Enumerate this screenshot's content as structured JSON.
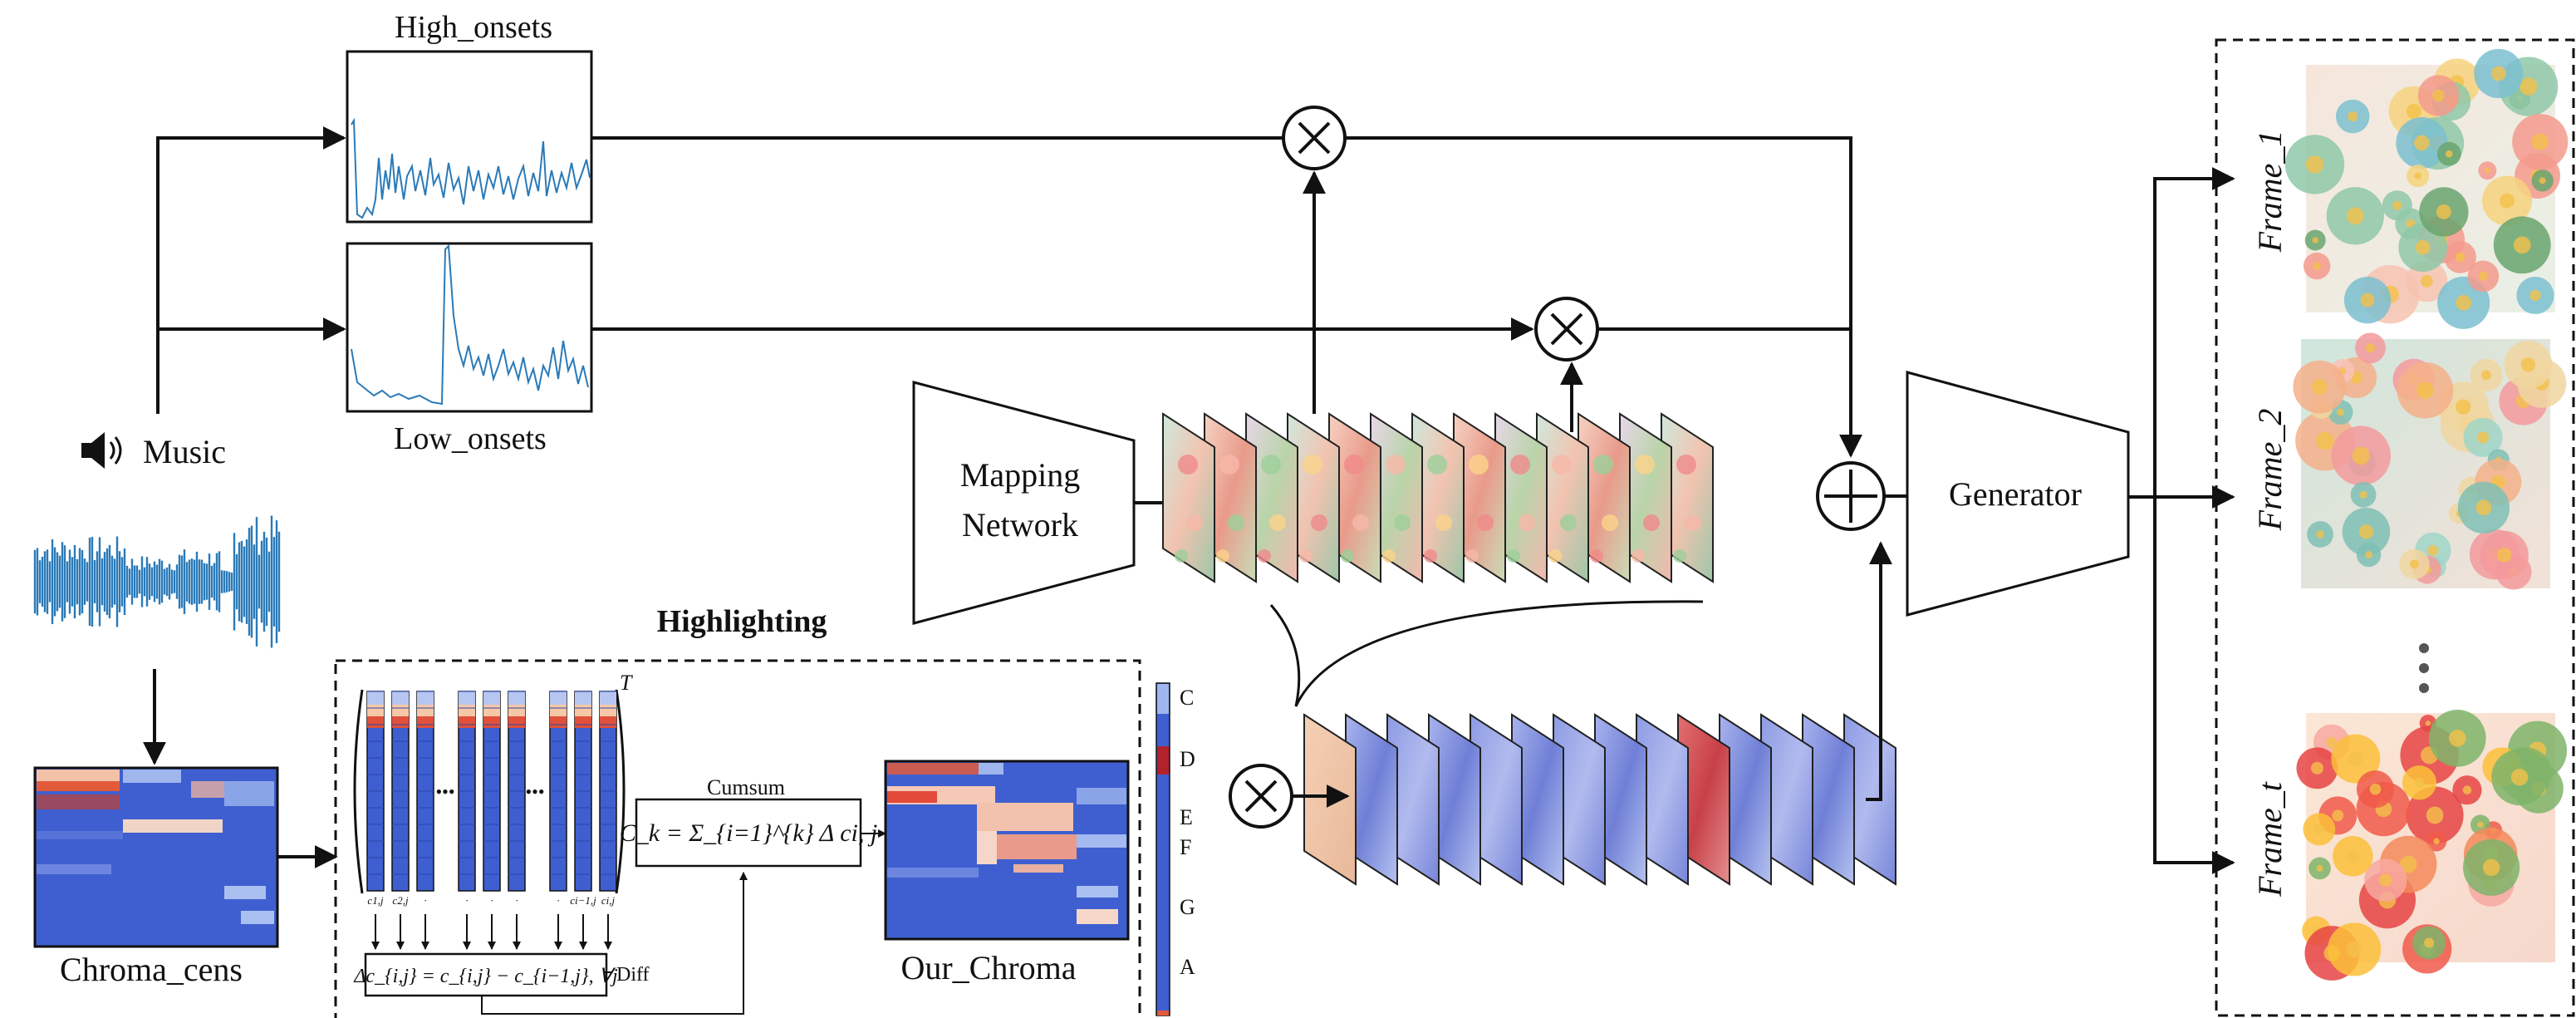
{
  "labels": {
    "high_onsets": "High_onsets",
    "low_onsets": "Low_onsets",
    "music": "Music",
    "chroma_cens": "Chroma_cens",
    "highlighting": "Highlighting",
    "our_chroma": "Our_Chroma",
    "mapping_network_line1": "Mapping",
    "mapping_network_line2": "Network",
    "generator": "Generator",
    "cumsum": "Cumsum",
    "diff": "Diff",
    "superscript_t": "T",
    "frame_1": "Frame_1",
    "frame_2": "Frame_2",
    "frame_t": "Frame_t",
    "ellipsis": "•••"
  },
  "formulas": {
    "cumsum_formula": "C_k = Σ_{i=1}^{k} Δ ci, j",
    "diff_formula": "Δc_{i,j} = c_{i,j} − c_{i−1,j}, ∀j"
  },
  "column_labels": [
    "c1,j",
    "c2,j",
    "·",
    "·",
    "·",
    "·",
    "·",
    "ci−1,j",
    "ci,j"
  ],
  "note_labels": [
    "C",
    "D",
    "E",
    "F",
    "G",
    "A"
  ],
  "operators": {
    "multiply": "⊗",
    "add": "⊕"
  },
  "colors": {
    "chroma_blue": "#3f5fd0",
    "chroma_light": "#9fb6ee",
    "chroma_red": "#c8403a",
    "waveform": "#2a7ab8",
    "line": "#111111"
  }
}
